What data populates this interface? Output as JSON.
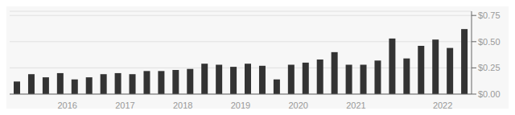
{
  "chart_data": {
    "type": "bar",
    "categories": [
      null,
      null,
      null,
      "2016",
      null,
      null,
      null,
      "2017",
      null,
      null,
      null,
      "2018",
      null,
      null,
      null,
      "2019",
      null,
      null,
      null,
      "2020",
      null,
      null,
      null,
      "2021",
      null,
      null,
      null,
      null,
      null,
      "2022",
      null,
      null
    ],
    "values": [
      0.12,
      0.19,
      0.16,
      0.2,
      0.14,
      0.16,
      0.19,
      0.2,
      0.19,
      0.22,
      0.22,
      0.23,
      0.24,
      0.29,
      0.28,
      0.26,
      0.29,
      0.27,
      0.14,
      0.28,
      0.3,
      0.33,
      0.4,
      0.28,
      0.28,
      0.32,
      0.53,
      0.34,
      0.46,
      0.52,
      0.44,
      0.62
    ],
    "color": "#333333",
    "ylim": [
      0,
      0.79
    ],
    "yticks": [
      {
        "value": 0,
        "label": "$0.00"
      },
      {
        "value": 0.25,
        "label": "$0.25"
      },
      {
        "value": 0.5,
        "label": "$0.50"
      },
      {
        "value": 0.75,
        "label": "$0.75"
      }
    ],
    "grid": true
  }
}
